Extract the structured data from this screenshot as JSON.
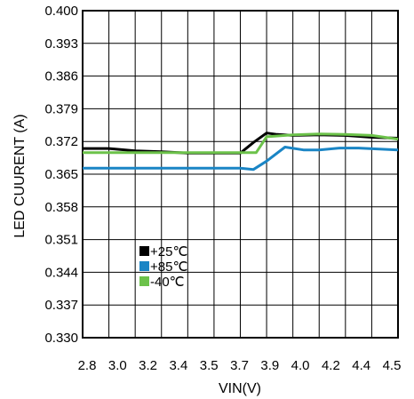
{
  "chart_data": {
    "type": "line",
    "xlabel": "VIN(V)",
    "ylabel": "LED CUURENT (A)",
    "x_tick_labels": [
      "2.8",
      "3.0",
      "3.2",
      "3.4",
      "3.5",
      "3.7",
      "3.9",
      "4.0",
      "4.2",
      "4.4",
      "4.5"
    ],
    "y_tick_labels": [
      "0.400",
      "0.393",
      "0.386",
      "0.379",
      "0.372",
      "0.365",
      "0.358",
      "0.351",
      "0.344",
      "0.337",
      "0.330"
    ],
    "ylim": [
      0.33,
      0.4
    ],
    "grid": true,
    "legend_position": "lower-left",
    "series": [
      {
        "name": "+25℃",
        "color": "#000000",
        "points": [
          [
            0,
            0.3705
          ],
          [
            1,
            0.3705
          ],
          [
            2,
            0.37
          ],
          [
            3,
            0.3698
          ],
          [
            4,
            0.3695
          ],
          [
            5,
            0.3695
          ],
          [
            6,
            0.3695
          ],
          [
            6.5,
            0.3718
          ],
          [
            7,
            0.3738
          ],
          [
            7.4,
            0.3735
          ],
          [
            8,
            0.3733
          ],
          [
            9,
            0.3734
          ],
          [
            10,
            0.3733
          ],
          [
            11,
            0.3729
          ],
          [
            12,
            0.3727
          ]
        ]
      },
      {
        "name": "+85℃",
        "color": "#1a85c5",
        "points": [
          [
            0,
            0.3663
          ],
          [
            1,
            0.3663
          ],
          [
            2,
            0.3663
          ],
          [
            3,
            0.3663
          ],
          [
            4,
            0.3663
          ],
          [
            5,
            0.3663
          ],
          [
            6,
            0.3663
          ],
          [
            6.5,
            0.366
          ],
          [
            7,
            0.3678
          ],
          [
            7.7,
            0.3708
          ],
          [
            8.4,
            0.3702
          ],
          [
            9,
            0.3702
          ],
          [
            9.8,
            0.3706
          ],
          [
            10.5,
            0.3706
          ],
          [
            12,
            0.3702
          ]
        ]
      },
      {
        "name": "-40℃",
        "color": "#6cc24a",
        "points": [
          [
            0,
            0.3696
          ],
          [
            1,
            0.3696
          ],
          [
            2,
            0.3696
          ],
          [
            3,
            0.3696
          ],
          [
            4,
            0.3696
          ],
          [
            5,
            0.3696
          ],
          [
            6,
            0.3696
          ],
          [
            6.6,
            0.3696
          ],
          [
            7,
            0.373
          ],
          [
            8,
            0.3734
          ],
          [
            9,
            0.3736
          ],
          [
            10,
            0.3735
          ],
          [
            11,
            0.3733
          ],
          [
            12,
            0.3725
          ]
        ]
      }
    ]
  }
}
